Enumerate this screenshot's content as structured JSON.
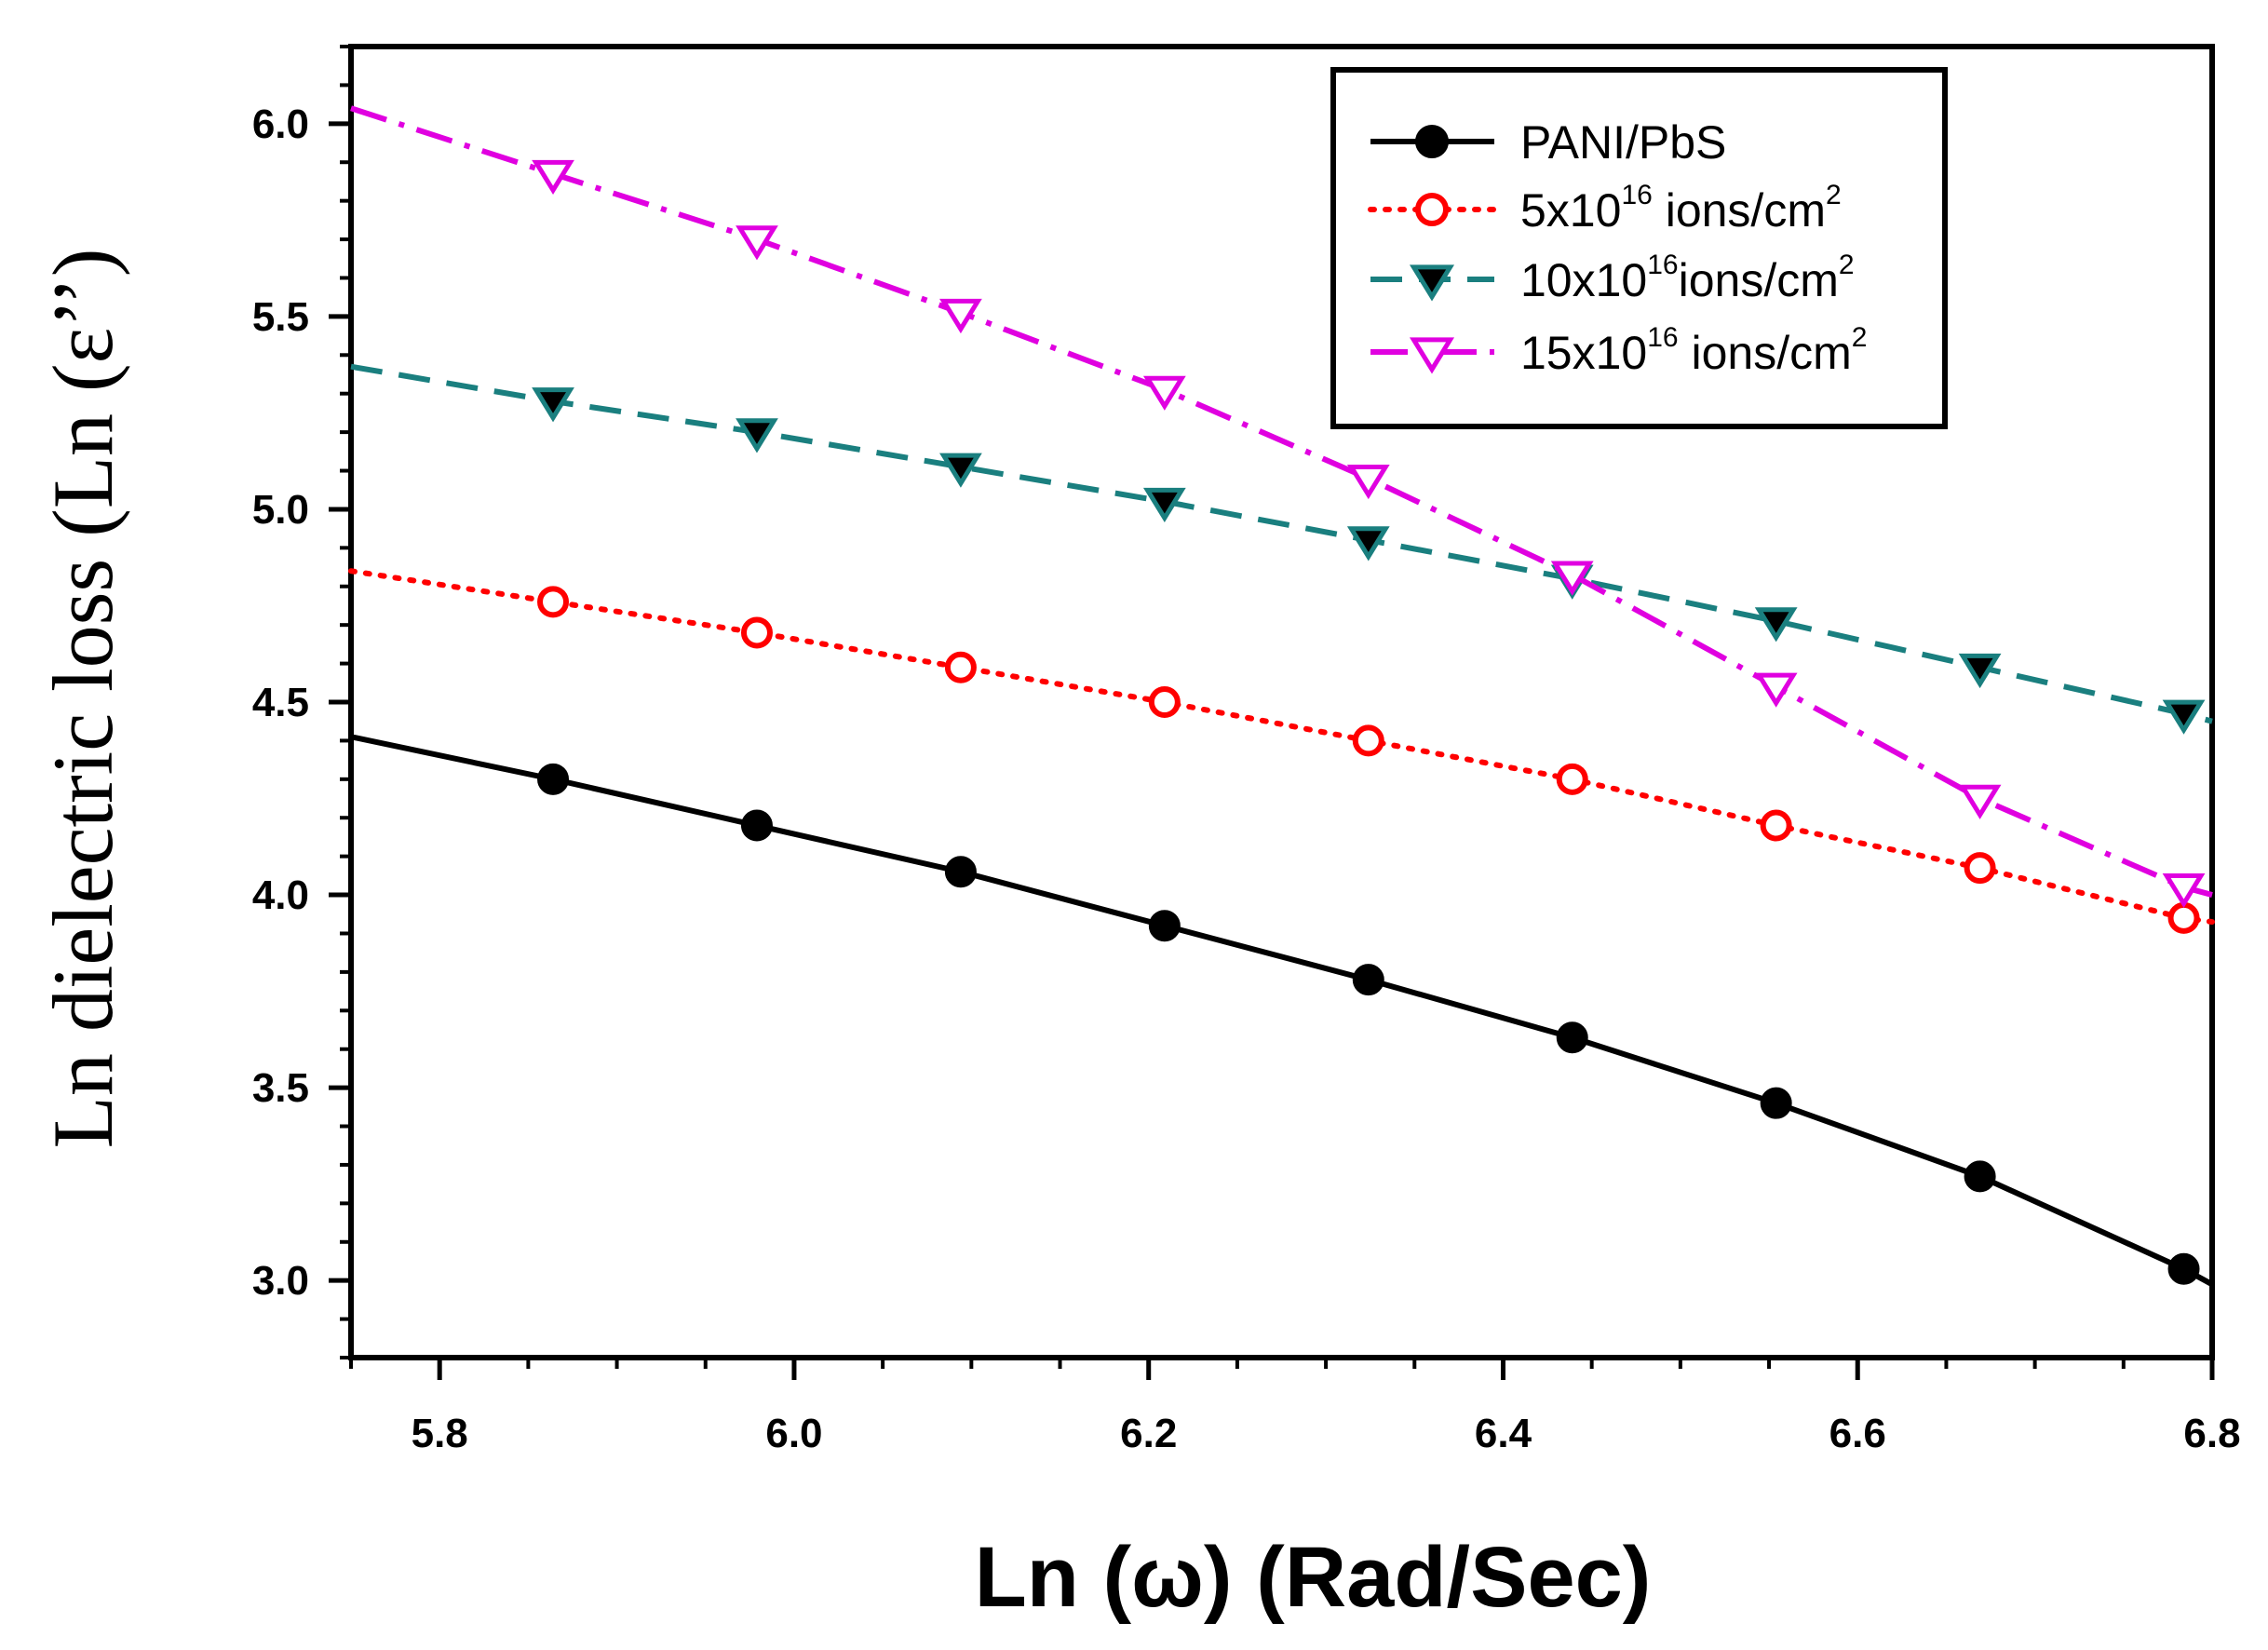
{
  "chart_data": {
    "type": "line",
    "title": "",
    "xlabel": "Ln (ω) (Rad/Sec)",
    "ylabel": "Ln dielectric loss (Ln (ε’’)",
    "xlim": [
      5.75,
      6.8
    ],
    "ylim": [
      2.8,
      6.2
    ],
    "x_ticks": [
      5.8,
      6.0,
      6.2,
      6.4,
      6.6,
      6.8
    ],
    "x_tick_labels": [
      "5.8",
      "6.0",
      "6.2",
      "6.4",
      "6.6",
      "6.8"
    ],
    "y_ticks": [
      3.0,
      3.5,
      4.0,
      4.5,
      5.0,
      5.5,
      6.0
    ],
    "y_tick_labels": [
      "3.0",
      "3.5",
      "4.0",
      "4.5",
      "5.0",
      "5.5",
      "6.0"
    ],
    "legend_position": "top-right",
    "x": [
      5.864,
      5.979,
      6.094,
      6.209,
      6.324,
      6.439,
      6.554,
      6.669,
      6.784
    ],
    "series": [
      {
        "name": "PANI/PbS",
        "legend_base": "PANI/PbS",
        "legend_exp": "",
        "legend_tail": "",
        "legend_exp2": "",
        "color": "#000000",
        "dash": "none",
        "marker": "circle-filled",
        "line_start": [
          5.75,
          4.41
        ],
        "line_end": [
          6.8,
          2.99
        ],
        "values": [
          4.3,
          4.18,
          4.06,
          3.92,
          3.78,
          3.63,
          3.46,
          3.27,
          3.03
        ]
      },
      {
        "name": "5x10^16 ions/cm^2",
        "legend_base": "5x10",
        "legend_exp": "16",
        "legend_tail": " ions/cm",
        "legend_exp2": "2",
        "color": "#ff0000",
        "dash": "dot",
        "marker": "circle-open",
        "line_start": [
          5.75,
          4.84
        ],
        "line_end": [
          6.8,
          3.93
        ],
        "values": [
          4.76,
          4.68,
          4.59,
          4.5,
          4.4,
          4.3,
          4.18,
          4.07,
          3.94
        ]
      },
      {
        "name": "10x10^16 ions/cm^2",
        "legend_base": "10x10",
        "legend_exp": "16",
        "legend_tail": "ions/cm",
        "legend_exp2": "2",
        "color": "#1a7f7f",
        "dash": "dash",
        "marker": "triangle-down-filled",
        "line_start": [
          5.75,
          5.37
        ],
        "line_end": [
          6.8,
          4.45
        ],
        "values": [
          5.28,
          5.2,
          5.11,
          5.02,
          4.92,
          4.82,
          4.71,
          4.59,
          4.47
        ]
      },
      {
        "name": "15x10^16 ions/cm^2",
        "legend_base": "15x10",
        "legend_exp": "16",
        "legend_tail": " ions/cm",
        "legend_exp2": "2",
        "color": "#e000e0",
        "dash": "dashdot",
        "marker": "triangle-down-open",
        "line_start": [
          5.75,
          6.04
        ],
        "line_end": [
          6.8,
          4.0
        ],
        "values": [
          5.87,
          5.7,
          5.51,
          5.31,
          5.08,
          4.83,
          4.54,
          4.25,
          4.02
        ]
      }
    ]
  }
}
